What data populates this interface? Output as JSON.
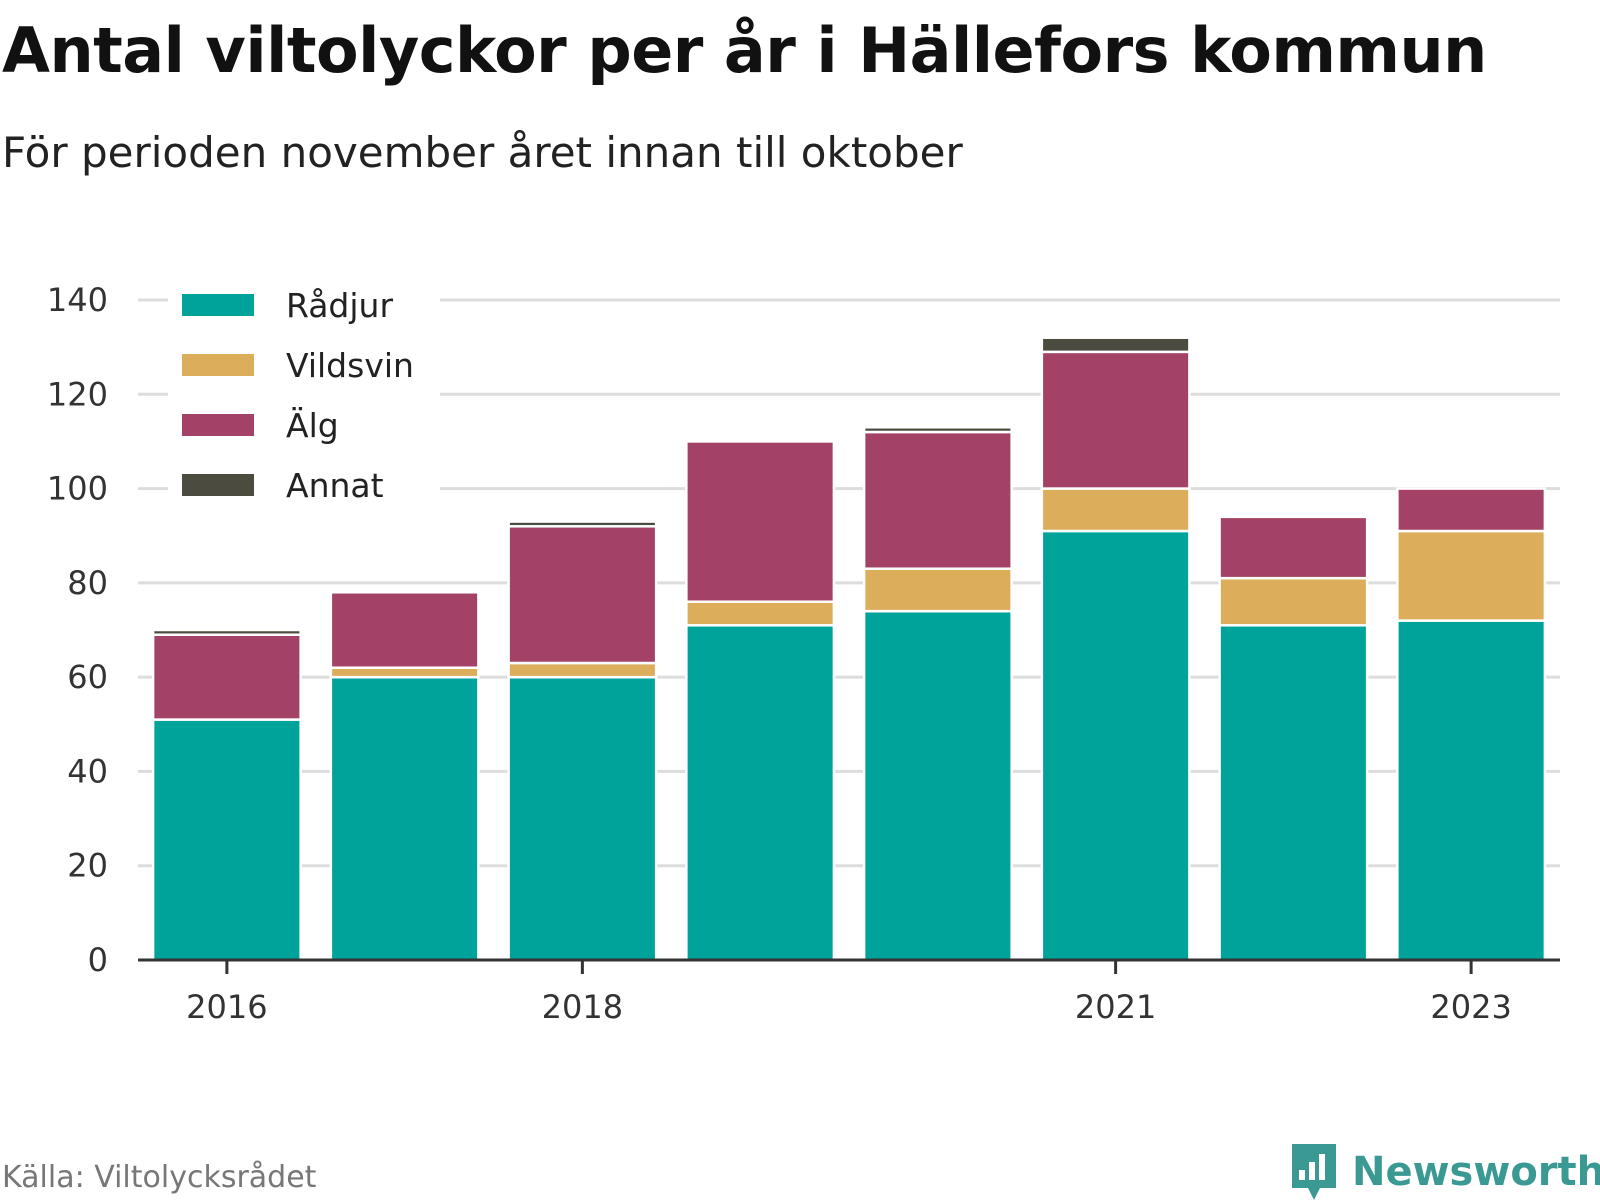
{
  "header": {
    "title": "Antal viltolyckor per år i Hällefors kommun",
    "subtitle": "För perioden november året innan till oktober"
  },
  "footer": {
    "source": "Källa: Viltolycksrådet",
    "brand": "Newsworthy"
  },
  "colors": {
    "Rådjur": "#00a39a",
    "Vildsvin": "#dcae5c",
    "Älg": "#a34266",
    "Annat": "#4b4c3f",
    "brand": "#3a9a93"
  },
  "chart_data": {
    "type": "bar",
    "stacked": true,
    "title": "Antal viltolyckor per år i Hällefors kommun",
    "subtitle": "För perioden november året innan till oktober",
    "categories": [
      "2016",
      "2017",
      "2018",
      "2019",
      "2020",
      "2021",
      "2022",
      "2023"
    ],
    "x_tick_labels": [
      "2016",
      "2018",
      "2021",
      "2023"
    ],
    "series": [
      {
        "name": "Rådjur",
        "values": [
          51,
          60,
          60,
          71,
          74,
          91,
          71,
          72
        ]
      },
      {
        "name": "Vildsvin",
        "values": [
          0,
          2,
          3,
          5,
          9,
          9,
          10,
          19
        ]
      },
      {
        "name": "Älg",
        "values": [
          18,
          16,
          29,
          34,
          29,
          29,
          13,
          9
        ]
      },
      {
        "name": "Annat",
        "values": [
          1,
          0,
          1,
          0,
          1,
          3,
          0,
          0
        ]
      }
    ],
    "ylim": [
      0,
      140
    ],
    "y_ticks": [
      0,
      20,
      40,
      60,
      80,
      100,
      120,
      140
    ],
    "grid": true,
    "legend_position": "top-left"
  }
}
